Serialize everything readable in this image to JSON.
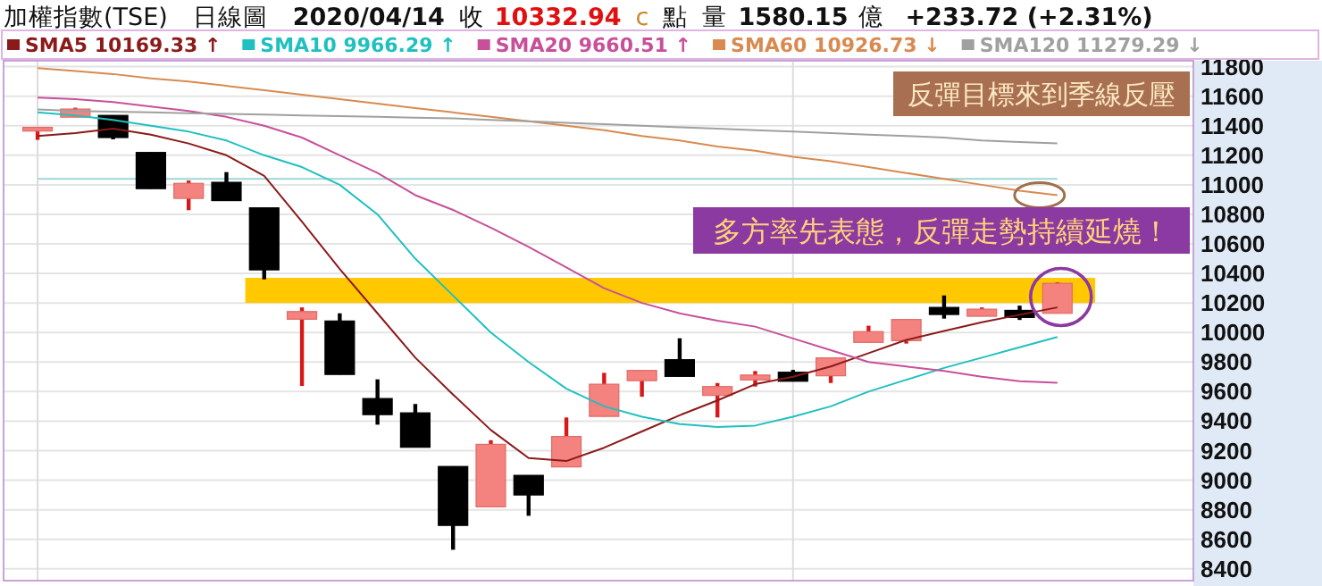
{
  "chart_data": {
    "type": "candlestick",
    "title": "加權指數(TSE)",
    "subtitle": "日線圖",
    "categories": [
      null,
      null,
      null,
      null,
      null,
      null,
      null,
      null,
      null,
      null,
      null,
      null,
      null,
      null,
      null,
      null,
      null,
      null,
      null,
      null,
      null,
      null,
      null,
      null,
      null,
      null,
      null,
      null
    ],
    "ohlc": [
      [
        11364,
        11389,
        11304,
        11389
      ],
      [
        11458,
        11522,
        11458,
        11513
      ],
      [
        11470,
        11470,
        11308,
        11320
      ],
      [
        11219,
        11219,
        10974,
        10974
      ],
      [
        10908,
        11029,
        10828,
        11010
      ],
      [
        11017,
        11086,
        10893,
        10893
      ],
      [
        10844,
        10844,
        10360,
        10424
      ],
      [
        10090,
        10170,
        9638,
        10142
      ],
      [
        10078,
        10130,
        9716,
        9716
      ],
      [
        9553,
        9683,
        9376,
        9444
      ],
      [
        9456,
        9516,
        9223,
        9223
      ],
      [
        9093,
        9093,
        8529,
        8694
      ],
      [
        8820,
        9271,
        8820,
        9243
      ],
      [
        9033,
        9033,
        8759,
        8900
      ],
      [
        9090,
        9425,
        9090,
        9296
      ],
      [
        9432,
        9727,
        9432,
        9650
      ],
      [
        9674,
        9743,
        9565,
        9743
      ],
      [
        9816,
        9961,
        9703,
        9703
      ],
      [
        9574,
        9658,
        9425,
        9634
      ],
      [
        9679,
        9739,
        9634,
        9712
      ],
      [
        9731,
        9747,
        9670,
        9670
      ],
      [
        9707,
        9828,
        9658,
        9828
      ],
      [
        9933,
        10046,
        9933,
        10006
      ],
      [
        9945,
        10088,
        9925,
        10088
      ],
      [
        10170,
        10251,
        10094,
        10122
      ],
      [
        10110,
        10170,
        10110,
        10158
      ],
      [
        10150,
        10182,
        10085,
        10102
      ],
      [
        10130,
        10340,
        10130,
        10333
      ]
    ],
    "series": [
      {
        "type": "line",
        "name": "SMA5 10169.33 ↑",
        "color": "#8b1a1a",
        "values": [
          11330,
          11350,
          11380,
          11340,
          11280,
          11200,
          11060,
          10750,
          10430,
          10130,
          9830,
          9580,
          9340,
          9150,
          9130,
          9220,
          9330,
          9440,
          9540,
          9650,
          9700,
          9770,
          9860,
          9950,
          10010,
          10070,
          10120,
          10170
        ]
      },
      {
        "type": "line",
        "name": "SMA10 9966.29 ↑",
        "color": "#20c0c0",
        "values": [
          11490,
          11470,
          11440,
          11400,
          11360,
          11300,
          11200,
          11120,
          11000,
          10800,
          10500,
          10250,
          10000,
          9800,
          9620,
          9500,
          9430,
          9380,
          9360,
          9370,
          9430,
          9500,
          9600,
          9680,
          9760,
          9830,
          9900,
          9970
        ]
      },
      {
        "type": "line",
        "name": "SMA20 9660.51 ↑",
        "color": "#c8509a",
        "values": [
          11590,
          11580,
          11560,
          11530,
          11500,
          11460,
          11400,
          11320,
          11200,
          11080,
          10930,
          10830,
          10710,
          10580,
          10440,
          10300,
          10200,
          10130,
          10080,
          10040,
          9960,
          9880,
          9800,
          9770,
          9740,
          9700,
          9670,
          9660
        ]
      },
      {
        "type": "line",
        "name": "SMA60 10926.73 ↓",
        "color": "#d88a50",
        "values": [
          11790,
          11770,
          11750,
          11720,
          11700,
          11670,
          11640,
          11610,
          11580,
          11550,
          11520,
          11490,
          11460,
          11430,
          11400,
          11370,
          11330,
          11300,
          11260,
          11230,
          11190,
          11160,
          11120,
          11080,
          11040,
          11000,
          10960,
          10930
        ]
      },
      {
        "type": "line",
        "name": "SMA120 11279.29 ↓",
        "color": "#a0a0a0",
        "values": [
          11510,
          11500,
          11495,
          11490,
          11485,
          11480,
          11475,
          11470,
          11465,
          11460,
          11455,
          11450,
          11440,
          11430,
          11420,
          11410,
          11400,
          11390,
          11380,
          11370,
          11360,
          11350,
          11340,
          11330,
          11320,
          11300,
          11290,
          11280
        ]
      }
    ],
    "ylim": [
      8320,
      11840
    ],
    "yticks": [
      8400,
      8600,
      8800,
      9000,
      9200,
      9400,
      9600,
      9800,
      10000,
      10200,
      10400,
      10600,
      10800,
      11000,
      11200,
      11400,
      11600,
      11800
    ],
    "grid": "y",
    "legend": "top",
    "bands": [
      {
        "axis": "y",
        "from": 10200,
        "to": 10370,
        "color": "#ffc800"
      }
    ],
    "ref_lines": [
      {
        "axis": "y",
        "value": 11040,
        "color": "#9fd6d6"
      }
    ],
    "annotations": [
      "2020/04/14",
      "收",
      "10332.94",
      "c",
      "點",
      "量",
      "1580.15",
      "億",
      "+233.72 (+2.31%)",
      "反彈目標來到季線反壓",
      "多方率先表態，反彈走勢持續延燒！"
    ]
  }
}
